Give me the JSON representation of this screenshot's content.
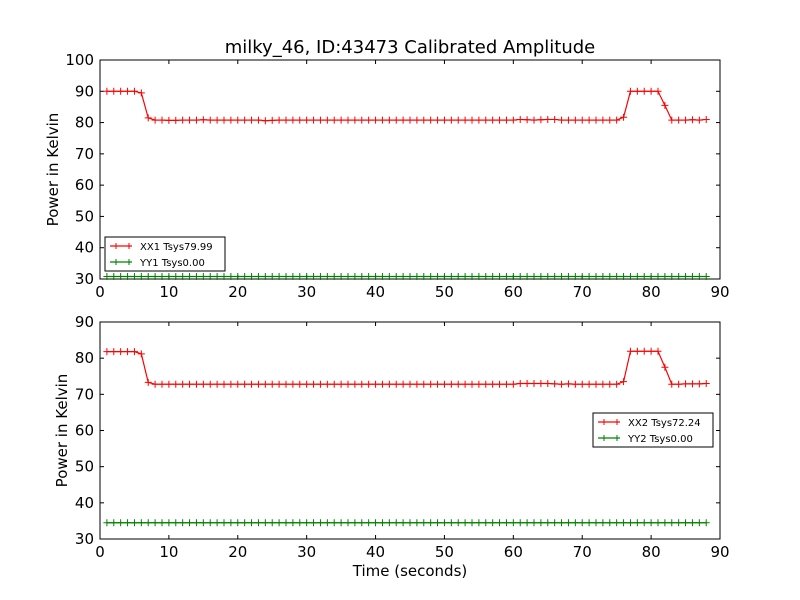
{
  "figure": {
    "title": "milky_46, ID:43473 Calibrated Amplitude",
    "xlabel": "Time (seconds)"
  },
  "chart_data": [
    {
      "type": "line",
      "title": "milky_46, ID:43473 Calibrated Amplitude",
      "xlabel": "",
      "ylabel": "Power in Kelvin",
      "xlim": [
        0,
        90
      ],
      "ylim": [
        30,
        100
      ],
      "xticks": [
        "0",
        "10",
        "20",
        "30",
        "40",
        "50",
        "60",
        "70",
        "80",
        "90"
      ],
      "yticks": [
        "30",
        "40",
        "50",
        "60",
        "70",
        "80",
        "90",
        "100"
      ],
      "grid": false,
      "legend_placement": "lower-left",
      "x": [
        1,
        2,
        3,
        4,
        5,
        6,
        7,
        8,
        9,
        10,
        11,
        12,
        13,
        14,
        15,
        16,
        17,
        18,
        19,
        20,
        21,
        22,
        23,
        24,
        25,
        26,
        27,
        28,
        29,
        30,
        31,
        32,
        33,
        34,
        35,
        36,
        37,
        38,
        39,
        40,
        41,
        42,
        43,
        44,
        45,
        46,
        47,
        48,
        49,
        50,
        51,
        52,
        53,
        54,
        55,
        56,
        57,
        58,
        59,
        60,
        61,
        62,
        63,
        64,
        65,
        66,
        67,
        68,
        69,
        70,
        71,
        72,
        73,
        74,
        75,
        76,
        77,
        78,
        79,
        80,
        81,
        82,
        83,
        84,
        85,
        86,
        87,
        88
      ],
      "series": [
        {
          "name": "XX1 Tsys79.99",
          "color": "#ff0000",
          "marker": "plus",
          "values": [
            90,
            90,
            90,
            90,
            90,
            89.5,
            81.5,
            80.8,
            80.8,
            80.7,
            80.7,
            80.8,
            80.8,
            80.8,
            80.9,
            80.8,
            80.8,
            80.8,
            80.8,
            80.8,
            80.8,
            80.8,
            80.8,
            80.6,
            80.7,
            80.8,
            80.8,
            80.8,
            80.8,
            80.8,
            80.8,
            80.8,
            80.8,
            80.8,
            80.8,
            80.8,
            80.8,
            80.8,
            80.8,
            80.8,
            80.8,
            80.8,
            80.8,
            80.8,
            80.8,
            80.8,
            80.8,
            80.8,
            80.8,
            80.8,
            80.8,
            80.8,
            80.8,
            80.8,
            80.8,
            80.8,
            80.8,
            80.8,
            80.8,
            80.8,
            81.0,
            80.9,
            80.8,
            80.9,
            81.0,
            81.0,
            80.8,
            80.8,
            80.8,
            80.8,
            80.8,
            80.8,
            80.8,
            80.8,
            80.8,
            81.7,
            90,
            90,
            90,
            90,
            90,
            85.5,
            80.8,
            80.8,
            80.8,
            80.9,
            80.8,
            81.0
          ]
        },
        {
          "name": "YY1 Tsys0.00",
          "color": "#008000",
          "marker": "plus",
          "values": [
            30.8,
            30.8,
            30.8,
            30.8,
            30.8,
            30.8,
            30.8,
            30.8,
            30.8,
            30.8,
            30.8,
            30.8,
            30.8,
            30.8,
            30.8,
            30.8,
            30.8,
            30.8,
            30.8,
            30.8,
            30.8,
            30.8,
            30.8,
            30.8,
            30.8,
            30.8,
            30.8,
            30.8,
            30.8,
            30.8,
            30.8,
            30.8,
            30.8,
            30.8,
            30.8,
            30.8,
            30.8,
            30.8,
            30.8,
            30.8,
            30.8,
            30.8,
            30.8,
            30.8,
            30.8,
            30.8,
            30.8,
            30.8,
            30.8,
            30.8,
            30.8,
            30.8,
            30.8,
            30.8,
            30.8,
            30.8,
            30.8,
            30.8,
            30.8,
            30.8,
            30.8,
            30.8,
            30.8,
            30.8,
            30.8,
            30.8,
            30.8,
            30.8,
            30.8,
            30.8,
            30.8,
            30.8,
            30.8,
            30.8,
            30.8,
            30.8,
            30.8,
            30.8,
            30.8,
            30.8,
            30.8,
            30.8,
            30.8,
            30.8,
            30.8,
            30.8,
            30.8,
            30.8
          ]
        }
      ]
    },
    {
      "type": "line",
      "title": "",
      "xlabel": "Time (seconds)",
      "ylabel": "Power in Kelvin",
      "xlim": [
        0,
        90
      ],
      "ylim": [
        30,
        90
      ],
      "xticks": [
        "0",
        "10",
        "20",
        "30",
        "40",
        "50",
        "60",
        "70",
        "80",
        "90"
      ],
      "yticks": [
        "30",
        "40",
        "50",
        "60",
        "70",
        "80",
        "90"
      ],
      "grid": false,
      "legend_placement": "center-right",
      "x": [
        1,
        2,
        3,
        4,
        5,
        6,
        7,
        8,
        9,
        10,
        11,
        12,
        13,
        14,
        15,
        16,
        17,
        18,
        19,
        20,
        21,
        22,
        23,
        24,
        25,
        26,
        27,
        28,
        29,
        30,
        31,
        32,
        33,
        34,
        35,
        36,
        37,
        38,
        39,
        40,
        41,
        42,
        43,
        44,
        45,
        46,
        47,
        48,
        49,
        50,
        51,
        52,
        53,
        54,
        55,
        56,
        57,
        58,
        59,
        60,
        61,
        62,
        63,
        64,
        65,
        66,
        67,
        68,
        69,
        70,
        71,
        72,
        73,
        74,
        75,
        76,
        77,
        78,
        79,
        80,
        81,
        82,
        83,
        84,
        85,
        86,
        87,
        88
      ],
      "series": [
        {
          "name": "XX2 Tsys72.24",
          "color": "#ff0000",
          "marker": "plus",
          "values": [
            81.8,
            81.8,
            81.8,
            81.8,
            81.8,
            81.2,
            73.3,
            72.8,
            72.8,
            72.8,
            72.8,
            72.8,
            72.8,
            72.8,
            72.8,
            72.8,
            72.8,
            72.8,
            72.8,
            72.8,
            72.8,
            72.8,
            72.8,
            72.8,
            72.8,
            72.8,
            72.8,
            72.8,
            72.8,
            72.8,
            72.8,
            72.8,
            72.8,
            72.8,
            72.8,
            72.8,
            72.8,
            72.8,
            72.8,
            72.8,
            72.8,
            72.8,
            72.8,
            72.8,
            72.8,
            72.8,
            72.8,
            72.8,
            72.8,
            72.8,
            72.8,
            72.8,
            72.8,
            72.8,
            72.8,
            72.8,
            72.8,
            72.8,
            72.8,
            72.8,
            73.0,
            73.0,
            73.0,
            73.0,
            73.0,
            72.9,
            72.8,
            72.9,
            72.8,
            72.8,
            72.8,
            72.8,
            72.8,
            72.8,
            72.8,
            73.5,
            81.9,
            81.9,
            81.9,
            81.9,
            81.9,
            77.5,
            72.8,
            72.8,
            72.9,
            72.9,
            72.9,
            73.0
          ]
        },
        {
          "name": "YY2 Tsys0.00",
          "color": "#008000",
          "marker": "plus",
          "values": [
            34.5,
            34.5,
            34.5,
            34.5,
            34.5,
            34.5,
            34.5,
            34.5,
            34.5,
            34.5,
            34.5,
            34.5,
            34.5,
            34.5,
            34.5,
            34.5,
            34.5,
            34.5,
            34.5,
            34.5,
            34.5,
            34.5,
            34.5,
            34.5,
            34.5,
            34.5,
            34.5,
            34.5,
            34.5,
            34.5,
            34.5,
            34.5,
            34.5,
            34.5,
            34.5,
            34.5,
            34.5,
            34.5,
            34.5,
            34.5,
            34.5,
            34.5,
            34.5,
            34.5,
            34.5,
            34.5,
            34.5,
            34.5,
            34.5,
            34.5,
            34.5,
            34.5,
            34.5,
            34.5,
            34.5,
            34.5,
            34.5,
            34.5,
            34.5,
            34.5,
            34.5,
            34.5,
            34.5,
            34.5,
            34.5,
            34.5,
            34.5,
            34.5,
            34.5,
            34.5,
            34.5,
            34.5,
            34.5,
            34.5,
            34.5,
            34.5,
            34.5,
            34.5,
            34.5,
            34.5,
            34.5,
            34.5,
            34.5,
            34.5,
            34.5,
            34.5,
            34.5,
            34.5
          ]
        }
      ]
    }
  ]
}
